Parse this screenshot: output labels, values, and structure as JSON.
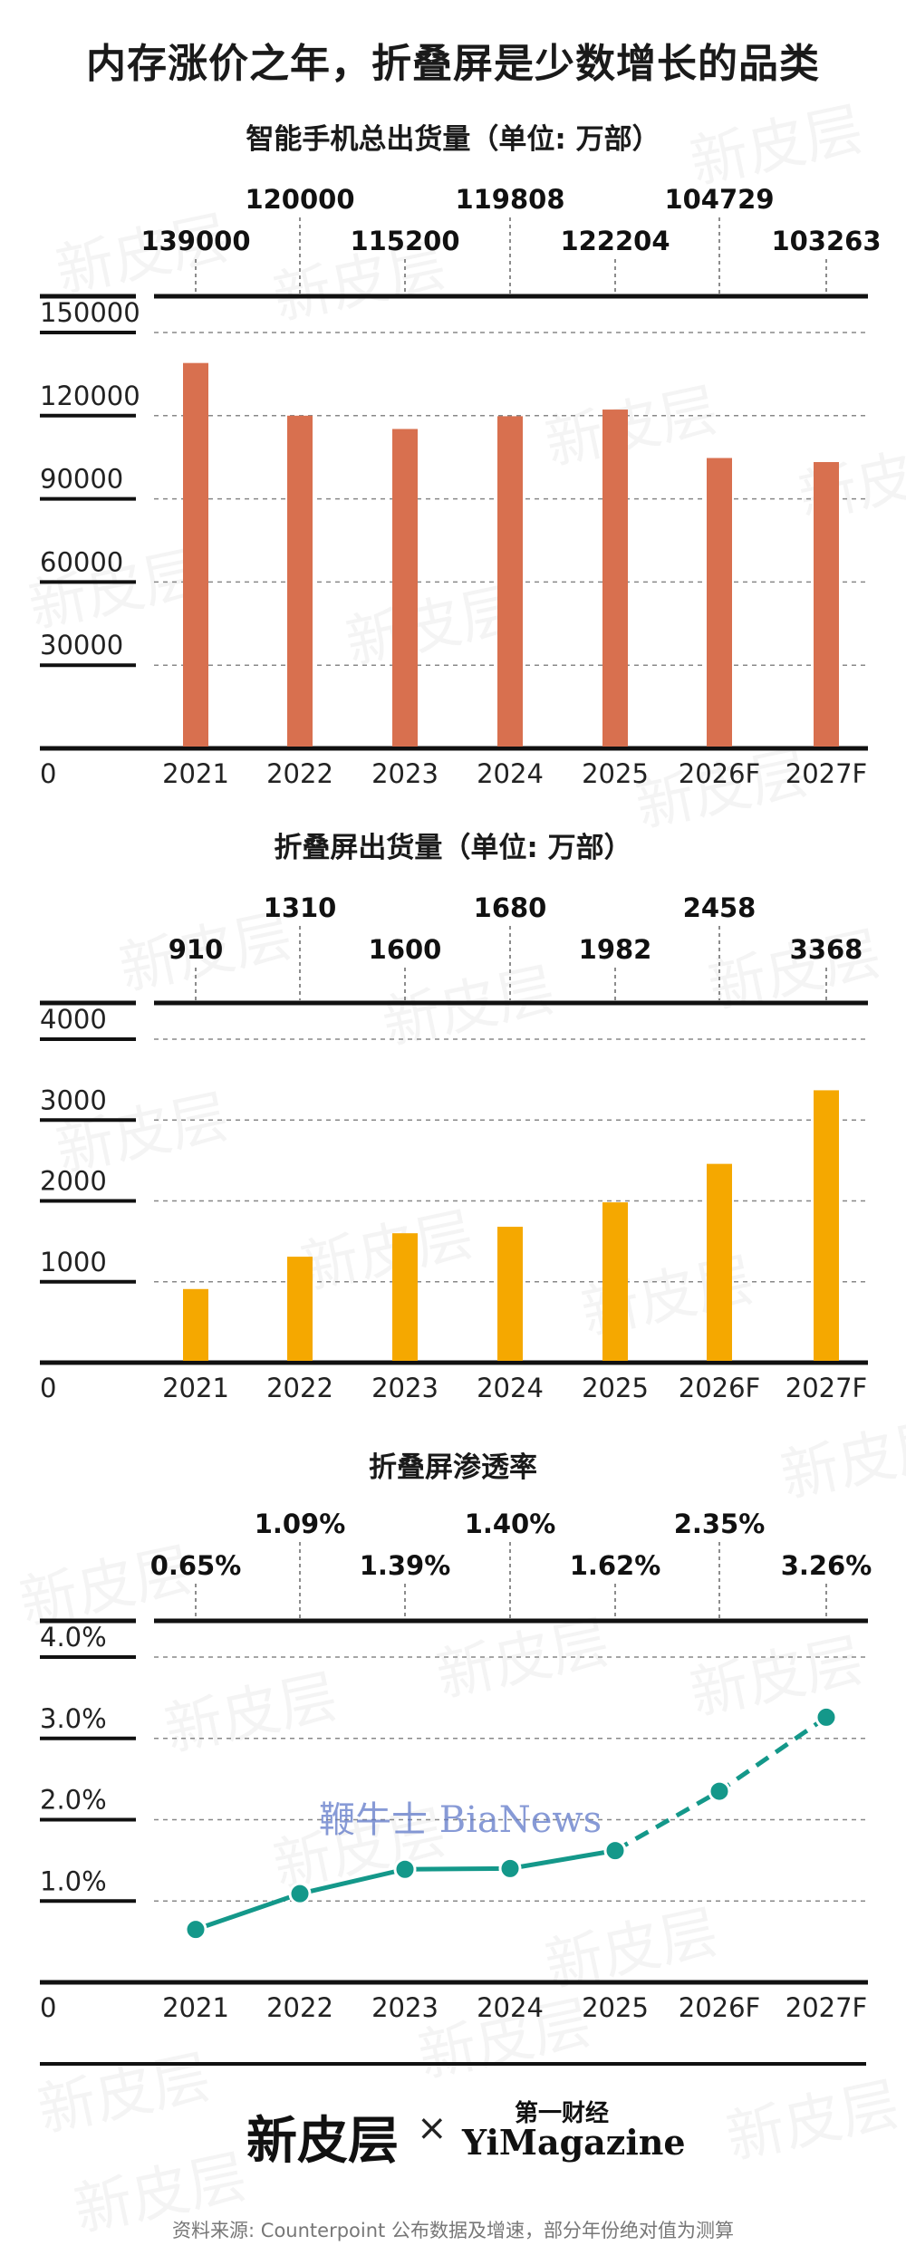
{
  "main_title": "内存涨价之年，折叠屏是少数增长的品类",
  "watermark_text": "新皮层",
  "inline_brand": "鞭牛士 BiaNews",
  "logos": {
    "left": "新皮层",
    "separator": "×",
    "right_top": "第一财经",
    "right": "YiMagazine"
  },
  "source_note": "资料来源: Counterpoint 公布数据及增速，部分年份绝对值为测算",
  "colors": {
    "bar1": "#d8704f",
    "bar2": "#f5a800",
    "line": "#14988a",
    "axis": "#111111",
    "grid": "#888888"
  },
  "chart_data": [
    {
      "type": "bar",
      "title": "智能手机总出货量（单位: 万部）",
      "categories": [
        "2021",
        "2022",
        "2023",
        "2024",
        "2025",
        "2026F",
        "2027F"
      ],
      "values": [
        139000,
        120000,
        115200,
        119808,
        122204,
        104729,
        103263
      ],
      "value_labels": [
        "139000",
        "120000",
        "115200",
        "119808",
        "122204",
        "104729",
        "103263"
      ],
      "yticks": [
        "0",
        "30000",
        "60000",
        "90000",
        "120000",
        "150000"
      ],
      "ylim": [
        0,
        150000
      ],
      "grid": true
    },
    {
      "type": "bar",
      "title": "折叠屏出货量（单位: 万部）",
      "categories": [
        "2021",
        "2022",
        "2023",
        "2024",
        "2025",
        "2026F",
        "2027F"
      ],
      "values": [
        910,
        1310,
        1600,
        1680,
        1982,
        2458,
        3368
      ],
      "value_labels": [
        "910",
        "1310",
        "1600",
        "1680",
        "1982",
        "2458",
        "3368"
      ],
      "yticks": [
        "0",
        "1000",
        "2000",
        "3000",
        "4000"
      ],
      "ylim": [
        0,
        4000
      ],
      "grid": true
    },
    {
      "type": "line",
      "title": "折叠屏渗透率",
      "categories": [
        "2021",
        "2022",
        "2023",
        "2024",
        "2025",
        "2026F",
        "2027F"
      ],
      "values": [
        0.65,
        1.09,
        1.39,
        1.4,
        1.62,
        2.35,
        3.26
      ],
      "value_labels": [
        "0.65%",
        "1.09%",
        "1.39%",
        "1.40%",
        "1.62%",
        "2.35%",
        "3.26%"
      ],
      "yticks": [
        "0",
        "1.0%",
        "2.0%",
        "3.0%",
        "4.0%"
      ],
      "ylim": [
        0,
        4
      ],
      "dashed_from_index": 4,
      "grid": true
    }
  ]
}
